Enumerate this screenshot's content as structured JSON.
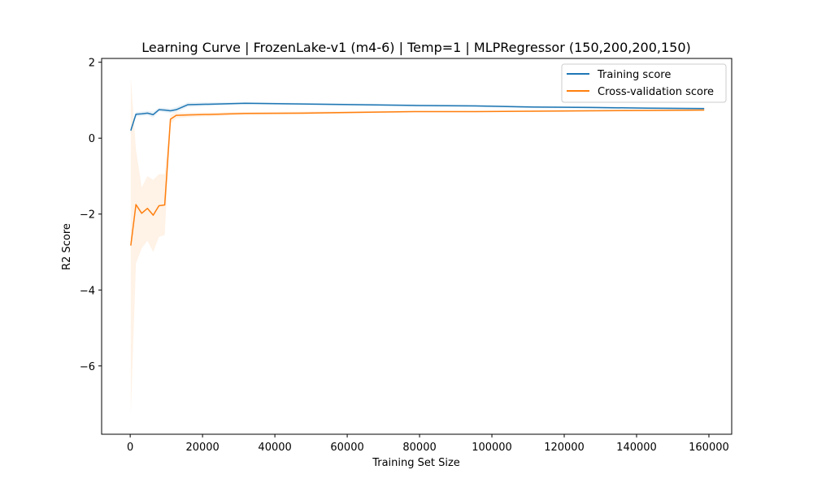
{
  "chart_data": {
    "type": "line",
    "title": "Learning Curve | FrozenLake-v1 (m4-6) | Temp=1 | MLPRegressor (150,200,200,150)",
    "xlabel": "Training Set Size",
    "ylabel": "R2 Score",
    "xlim": [
      -7900,
      166300
    ],
    "ylim": [
      -7.8,
      2.1
    ],
    "xticks": [
      0,
      20000,
      40000,
      60000,
      80000,
      100000,
      120000,
      140000,
      160000
    ],
    "xtick_labels": [
      "0",
      "20000",
      "40000",
      "60000",
      "80000",
      "100000",
      "120000",
      "140000",
      "160000"
    ],
    "yticks": [
      2,
      0,
      -2,
      -4,
      -6
    ],
    "ytick_labels": [
      "2",
      "0",
      "−2",
      "−4",
      "−6"
    ],
    "grid": false,
    "legend_position": "upper right",
    "series": [
      {
        "name": "Training score",
        "color": "#1f77b4",
        "x": [
          158,
          1590,
          3180,
          4770,
          6360,
          7950,
          9540,
          11130,
          12720,
          15900,
          31800,
          47700,
          63600,
          79500,
          95400,
          111300,
          127200,
          143100,
          158700
        ],
        "y": [
          0.2,
          0.63,
          0.64,
          0.66,
          0.62,
          0.75,
          0.74,
          0.72,
          0.75,
          0.88,
          0.92,
          0.9,
          0.88,
          0.86,
          0.85,
          0.82,
          0.81,
          0.79,
          0.78
        ],
        "band_upper": [
          0.27,
          0.69,
          0.7,
          0.72,
          0.7,
          0.8,
          0.8,
          0.78,
          0.82,
          0.94,
          0.95,
          0.93,
          0.91,
          0.89,
          0.88,
          0.85,
          0.84,
          0.82,
          0.81
        ],
        "band_lower": [
          0.13,
          0.57,
          0.58,
          0.6,
          0.54,
          0.7,
          0.68,
          0.66,
          0.68,
          0.82,
          0.89,
          0.87,
          0.85,
          0.83,
          0.82,
          0.79,
          0.78,
          0.76,
          0.75
        ]
      },
      {
        "name": "Cross-validation score",
        "color": "#ff7f0e",
        "x": [
          158,
          1590,
          3180,
          4770,
          6360,
          7950,
          9540,
          11130,
          12720,
          15900,
          31800,
          47700,
          63600,
          79500,
          95400,
          111300,
          127200,
          143100,
          158700
        ],
        "y": [
          -2.83,
          -1.75,
          -1.98,
          -1.85,
          -2.03,
          -1.78,
          -1.76,
          0.5,
          0.6,
          0.61,
          0.65,
          0.66,
          0.68,
          0.7,
          0.7,
          0.71,
          0.72,
          0.73,
          0.74
        ],
        "band_upper": [
          1.6,
          -0.3,
          -1.3,
          -1.0,
          -1.1,
          -0.95,
          -0.95,
          0.62,
          0.68,
          0.67,
          0.69,
          0.7,
          0.71,
          0.72,
          0.72,
          0.73,
          0.74,
          0.75,
          0.76
        ],
        "band_lower": [
          -7.3,
          -3.3,
          -2.9,
          -2.7,
          -3.0,
          -2.6,
          -2.55,
          0.38,
          0.52,
          0.55,
          0.61,
          0.62,
          0.65,
          0.68,
          0.68,
          0.69,
          0.7,
          0.71,
          0.72
        ]
      }
    ]
  }
}
